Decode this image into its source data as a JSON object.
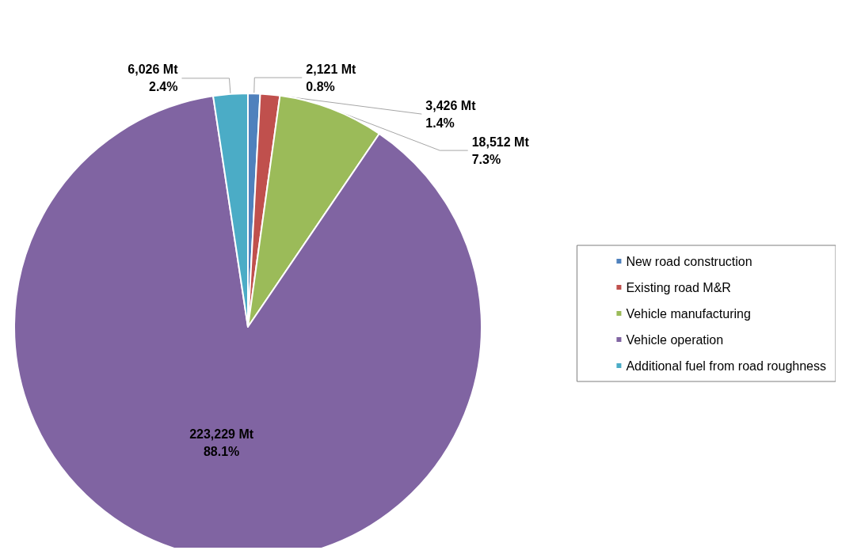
{
  "chart_data": {
    "type": "pie",
    "categories": [
      "New road construction",
      "Existing road M&R",
      "Vehicle manufacturing",
      "Vehicle operation",
      "Additional fuel from road roughness"
    ],
    "values": [
      2121,
      3426,
      18512,
      223229,
      6026
    ],
    "colors": [
      "#4f81bd",
      "#c0504d",
      "#9bbb59",
      "#8064a2",
      "#4bacc6"
    ],
    "value_labels": [
      "2,121 Mt\n0.8%",
      "3,426 Mt\n1.4%",
      "18,512 Mt\n7.3%",
      "223,229 Mt\n88.1%",
      "6,026 Mt\n2.4%"
    ],
    "legend": "right"
  }
}
